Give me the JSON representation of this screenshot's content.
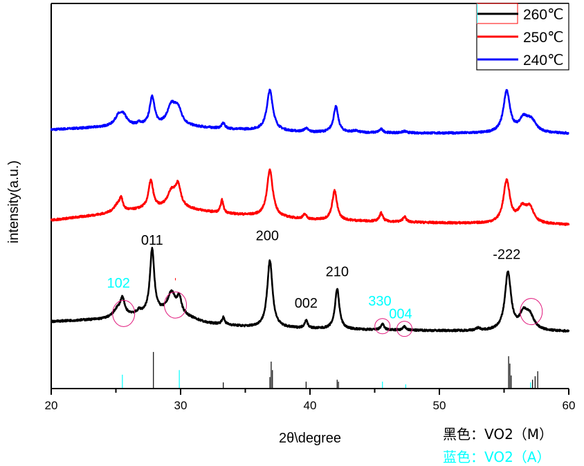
{
  "chart_data": {
    "type": "line",
    "title": "",
    "xlabel": "2θ\\degree",
    "ylabel": "intensity(a.u.)",
    "xlim": [
      20,
      60
    ],
    "ylim": [
      0,
      1000
    ],
    "x_ticks": [
      20,
      30,
      40,
      50,
      60
    ],
    "x_ticks_labels": [
      "20",
      "30",
      "40",
      "50",
      "60"
    ],
    "x_minor_ticks": [
      25,
      35,
      45,
      55
    ],
    "grid": false,
    "legend": {
      "placement": "top-right",
      "entries": [
        {
          "name": "260℃",
          "color": "#000000"
        },
        {
          "name": "250℃",
          "color": "#ff0000"
        },
        {
          "name": "240℃",
          "color": "#0000ff"
        }
      ]
    },
    "series": [
      {
        "name": "240℃",
        "color": "#0000ff",
        "baseline": [
          [
            20,
            672
          ],
          [
            26,
            682
          ],
          [
            30,
            680
          ],
          [
            34,
            673
          ],
          [
            40,
            665
          ],
          [
            50,
            663
          ],
          [
            60,
            662
          ]
        ],
        "peaks": [
          {
            "x": 25.2,
            "height": 25,
            "width": 0.35
          },
          {
            "x": 25.6,
            "height": 22,
            "width": 0.3
          },
          {
            "x": 26.8,
            "height": 6,
            "width": 0.15
          },
          {
            "x": 27.8,
            "height": 75,
            "width": 0.22
          },
          {
            "x": 29.3,
            "height": 50,
            "width": 0.4
          },
          {
            "x": 29.8,
            "height": 38,
            "width": 0.35
          },
          {
            "x": 33.3,
            "height": 14,
            "width": 0.15
          },
          {
            "x": 36.9,
            "height": 105,
            "width": 0.28
          },
          {
            "x": 39.7,
            "height": 9,
            "width": 0.2
          },
          {
            "x": 42.0,
            "height": 67,
            "width": 0.22
          },
          {
            "x": 43.5,
            "height": 4,
            "width": 0.3
          },
          {
            "x": 45.5,
            "height": 9,
            "width": 0.18
          },
          {
            "x": 47.3,
            "height": 4,
            "width": 0.2
          },
          {
            "x": 55.2,
            "height": 108,
            "width": 0.3
          },
          {
            "x": 56.5,
            "height": 33,
            "width": 0.4
          },
          {
            "x": 57.1,
            "height": 30,
            "width": 0.45
          }
        ]
      },
      {
        "name": "250℃",
        "color": "#ff0000",
        "baseline": [
          [
            20,
            437
          ],
          [
            24,
            452
          ],
          [
            27,
            465
          ],
          [
            30,
            468
          ],
          [
            33,
            455
          ],
          [
            36,
            448
          ],
          [
            40,
            438
          ],
          [
            50,
            430
          ],
          [
            60,
            425
          ]
        ],
        "peaks": [
          {
            "x": 25.1,
            "height": 18,
            "width": 0.35
          },
          {
            "x": 25.4,
            "height": 30,
            "width": 0.15
          },
          {
            "x": 27.7,
            "height": 72,
            "width": 0.22
          },
          {
            "x": 29.3,
            "height": 42,
            "width": 0.4
          },
          {
            "x": 29.8,
            "height": 52,
            "width": 0.25
          },
          {
            "x": 33.2,
            "height": 34,
            "width": 0.13
          },
          {
            "x": 36.9,
            "height": 122,
            "width": 0.27
          },
          {
            "x": 39.6,
            "height": 12,
            "width": 0.17
          },
          {
            "x": 41.9,
            "height": 77,
            "width": 0.22
          },
          {
            "x": 45.5,
            "height": 22,
            "width": 0.15
          },
          {
            "x": 47.3,
            "height": 14,
            "width": 0.15
          },
          {
            "x": 55.2,
            "height": 110,
            "width": 0.3
          },
          {
            "x": 56.4,
            "height": 37,
            "width": 0.4
          },
          {
            "x": 57.0,
            "height": 38,
            "width": 0.35
          }
        ]
      },
      {
        "name": "260℃",
        "color": "#000000",
        "baseline": [
          [
            20,
            174
          ],
          [
            24,
            180
          ],
          [
            26,
            190
          ],
          [
            28,
            195
          ],
          [
            30,
            190
          ],
          [
            32,
            170
          ],
          [
            35,
            160
          ],
          [
            40,
            155
          ],
          [
            45,
            152
          ],
          [
            50,
            150
          ],
          [
            60,
            148
          ]
        ],
        "peaks": [
          {
            "x": 25.1,
            "height": 18,
            "width": 0.35
          },
          {
            "x": 25.5,
            "height": 42,
            "width": 0.2
          },
          {
            "x": 26.8,
            "height": 8,
            "width": 0.15
          },
          {
            "x": 27.8,
            "height": 165,
            "width": 0.2
          },
          {
            "x": 29.3,
            "height": 55,
            "width": 0.38
          },
          {
            "x": 29.9,
            "height": 38,
            "width": 0.2
          },
          {
            "x": 33.3,
            "height": 18,
            "width": 0.13
          },
          {
            "x": 36.9,
            "height": 175,
            "width": 0.24
          },
          {
            "x": 39.7,
            "height": 20,
            "width": 0.15
          },
          {
            "x": 42.1,
            "height": 105,
            "width": 0.2
          },
          {
            "x": 45.6,
            "height": 15,
            "width": 0.15
          },
          {
            "x": 47.3,
            "height": 9,
            "width": 0.15
          },
          {
            "x": 53.0,
            "height": 6,
            "width": 0.2
          },
          {
            "x": 55.3,
            "height": 150,
            "width": 0.28
          },
          {
            "x": 56.5,
            "height": 40,
            "width": 0.35
          },
          {
            "x": 57.0,
            "height": 35,
            "width": 0.4
          }
        ]
      }
    ],
    "reference_sticks": [
      {
        "phase": "VO2 (M)",
        "color": "#000000",
        "x": [
          27.9,
          33.3,
          36.9,
          37.0,
          37.1,
          39.7,
          42.1,
          42.2,
          55.35,
          55.45,
          55.55,
          57.2,
          57.4,
          57.6
        ],
        "intensity": [
          95,
          16,
          30,
          70,
          48,
          18,
          23,
          18,
          84,
          65,
          34,
          23,
          32,
          45
        ]
      },
      {
        "phase": "VO2 (A)",
        "color": "#00ffff",
        "x": [
          25.5,
          29.9,
          45.6,
          47.4,
          57.05
        ],
        "intensity": [
          36,
          48,
          18,
          11,
          16
        ]
      }
    ],
    "annotations": [
      {
        "text": "011",
        "x": 27.8,
        "y": 373,
        "color": "#000000"
      },
      {
        "text": "200",
        "x": 36.7,
        "y": 385,
        "color": "#000000"
      },
      {
        "text": "002",
        "x": 39.7,
        "y": 210,
        "color": "#000000"
      },
      {
        "text": "210",
        "x": 42.1,
        "y": 292,
        "color": "#000000"
      },
      {
        "text": "-222",
        "x": 55.2,
        "y": 337,
        "color": "#000000"
      },
      {
        "text": "102",
        "x": 25.2,
        "y": 262,
        "color": "#00ffff"
      },
      {
        "text": "330",
        "x": 45.4,
        "y": 215,
        "color": "#00ffff"
      },
      {
        "text": "004",
        "x": 47.0,
        "y": 182,
        "color": "#00ffff"
      }
    ],
    "circles": [
      {
        "x": 25.6,
        "y": 195,
        "color": "#e0157a"
      },
      {
        "x": 29.6,
        "y": 217,
        "color": "#e0157a"
      },
      {
        "x": 45.6,
        "y": 162,
        "color": "#e0157a"
      },
      {
        "x": 47.3,
        "y": 155,
        "color": "#e0157a"
      },
      {
        "x": 57.1,
        "y": 200,
        "color": "#e0157a"
      }
    ],
    "notes": [
      {
        "text": "黑色：VO2（M）",
        "color": "#000000"
      },
      {
        "text": "蓝色：VO2（A）",
        "color": "#00ffff"
      }
    ]
  }
}
